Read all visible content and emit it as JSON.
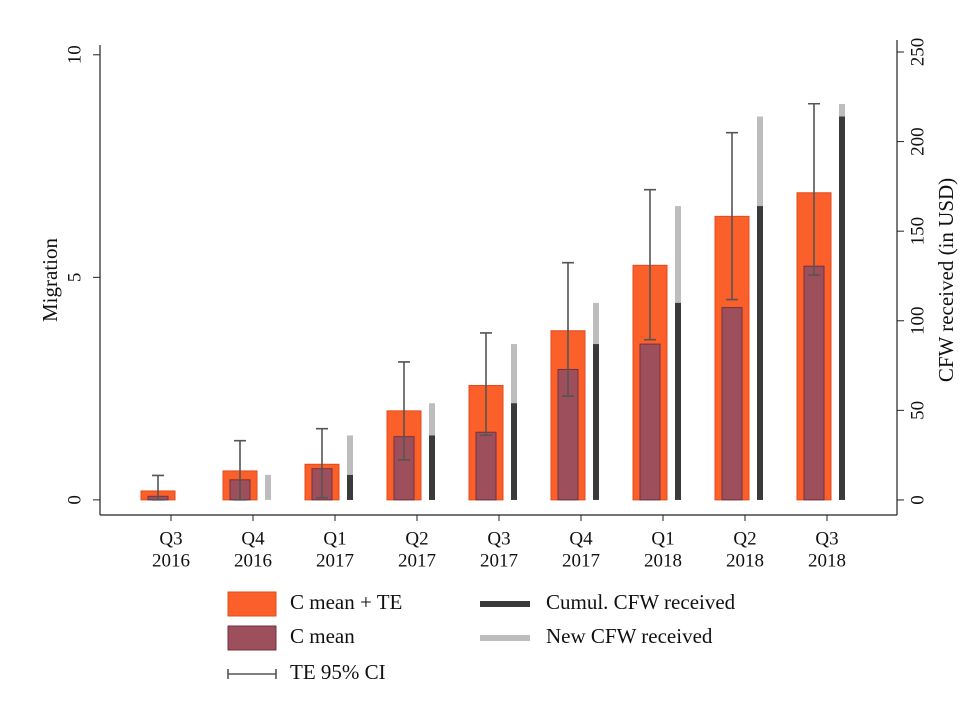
{
  "chart_data": {
    "type": "bar",
    "categories": [
      [
        "Q3",
        "2016"
      ],
      [
        "Q4",
        "2016"
      ],
      [
        "Q1",
        "2017"
      ],
      [
        "Q2",
        "2017"
      ],
      [
        "Q3",
        "2017"
      ],
      [
        "Q4",
        "2017"
      ],
      [
        "Q1",
        "2018"
      ],
      [
        "Q2",
        "2018"
      ],
      [
        "Q3",
        "2018"
      ]
    ],
    "y_label": "Migration",
    "y2_label": "CFW received (in USD)",
    "ylim": [
      -0.34,
      10.22
    ],
    "yticks": [
      0,
      5,
      10
    ],
    "y2lim": [
      -8.4,
      253.9
    ],
    "y2ticks": [
      0,
      50,
      100,
      150,
      200,
      250
    ],
    "series": [
      {
        "name": "C mean + TE",
        "color": "#fb5f2a",
        "values": [
          0.2,
          0.65,
          0.8,
          2.0,
          2.57,
          3.8,
          5.27,
          6.37,
          6.9
        ]
      },
      {
        "name": "C mean",
        "color": "#9e4f5c",
        "values": [
          0.08,
          0.45,
          0.7,
          1.42,
          1.52,
          2.93,
          3.5,
          4.32,
          5.25
        ]
      },
      {
        "name": "TE 95% CI",
        "color": "#555555",
        "low": [
          0,
          0,
          0.05,
          0.9,
          1.45,
          2.33,
          3.6,
          4.5,
          5.05
        ],
        "high": [
          0.55,
          1.33,
          1.6,
          3.1,
          3.75,
          5.33,
          6.97,
          8.25,
          8.9
        ]
      },
      {
        "name": "Cumul. CFW received",
        "color": "#3a3a3a",
        "axis": "y2",
        "values": [
          0,
          0,
          14,
          36,
          54,
          87,
          110,
          164,
          214
        ]
      },
      {
        "name": "New CFW received",
        "color": "#bdbdbd",
        "axis": "y2",
        "values": [
          0,
          14,
          22,
          18,
          33,
          23,
          54,
          50,
          7
        ]
      }
    ]
  }
}
